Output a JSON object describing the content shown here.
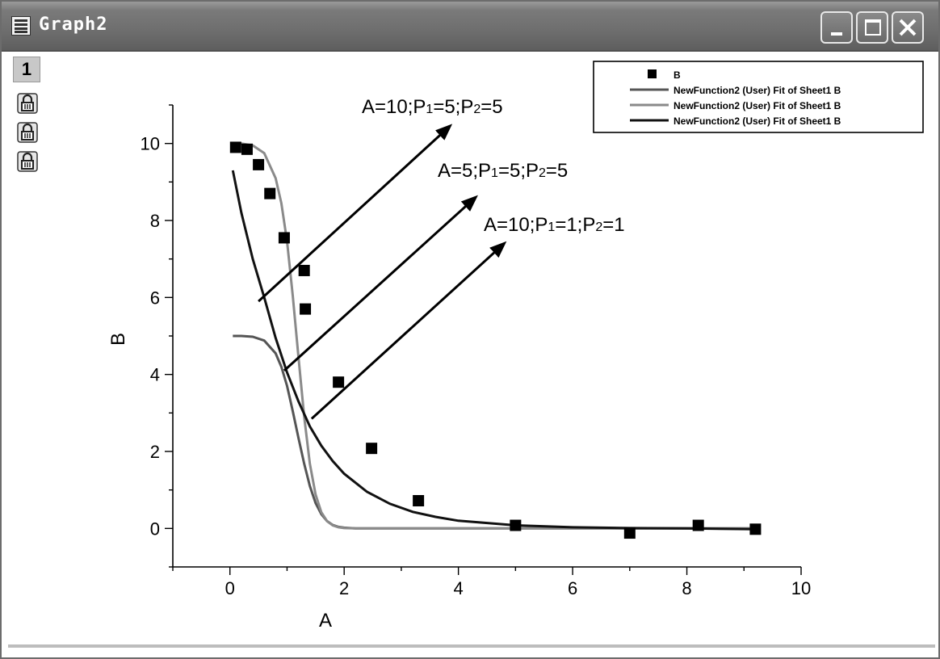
{
  "window": {
    "title": "Graph2",
    "layer_label": "1",
    "controls": [
      "minimize-icon",
      "maximize-icon",
      "close-icon"
    ],
    "side_icons": [
      "lock-icon",
      "lock-icon",
      "lock-icon"
    ]
  },
  "chart_data": {
    "type": "scatter",
    "xlabel": "A",
    "ylabel": "B",
    "xlim": [
      -1,
      10
    ],
    "ylim": [
      -1,
      11
    ],
    "xticks": [
      "0",
      "2",
      "4",
      "6",
      "8",
      "10"
    ],
    "yticks": [
      "0",
      "2",
      "4",
      "6",
      "8",
      "10"
    ],
    "grid": false,
    "legend_position": "top-right",
    "legend": [
      "B",
      "NewFunction2 (User) Fit of Sheet1 B",
      "NewFunction2 (User) Fit of Sheet1 B",
      "NewFunction2 (User) Fit of Sheet1 B"
    ],
    "series": [
      {
        "name": "B",
        "kind": "points",
        "color": "#000000",
        "x": [
          0.1,
          0.3,
          0.5,
          0.7,
          0.95,
          1.3,
          1.32,
          1.9,
          2.48,
          3.3,
          5.0,
          7.0,
          8.2,
          9.2
        ],
        "y": [
          9.9,
          9.85,
          9.45,
          8.7,
          7.55,
          6.7,
          5.7,
          3.8,
          2.08,
          0.72,
          0.08,
          -0.12,
          0.08,
          -0.02
        ]
      },
      {
        "name": "NewFunction2 (User) Fit of Sheet1 B",
        "kind": "line",
        "color": "#555555",
        "x": [
          0.05,
          0.2,
          0.4,
          0.6,
          0.8,
          0.9,
          1.0,
          1.1,
          1.2,
          1.3,
          1.4,
          1.5,
          1.6,
          1.7,
          1.8,
          1.9,
          2.0,
          2.2,
          2.6,
          3.0,
          4.0,
          6.0,
          8.0,
          9.2
        ],
        "y": [
          5.0,
          5.0,
          4.98,
          4.88,
          4.55,
          4.2,
          3.7,
          3.05,
          2.35,
          1.68,
          1.1,
          0.66,
          0.37,
          0.19,
          0.09,
          0.04,
          0.02,
          0.0,
          0.0,
          0.0,
          0.0,
          0.0,
          0.0,
          0.0
        ]
      },
      {
        "name": "NewFunction2 (User) Fit of Sheet1 B",
        "kind": "line",
        "color": "#8a8a8a",
        "x": [
          0.05,
          0.2,
          0.4,
          0.6,
          0.8,
          0.9,
          1.0,
          1.1,
          1.2,
          1.3,
          1.4,
          1.5,
          1.6,
          1.7,
          1.8,
          1.9,
          2.0,
          2.2,
          2.6,
          3.0,
          4.0,
          6.0,
          8.0,
          9.2
        ],
        "y": [
          10.0,
          10.0,
          9.95,
          9.75,
          9.1,
          8.45,
          7.45,
          6.05,
          4.45,
          2.9,
          1.68,
          0.88,
          0.42,
          0.19,
          0.08,
          0.03,
          0.01,
          0.0,
          0.0,
          0.0,
          0.0,
          0.0,
          0.0,
          0.0
        ]
      },
      {
        "name": "NewFunction2 (User) Fit of Sheet1 B",
        "kind": "line",
        "color": "#111111",
        "x": [
          0.05,
          0.2,
          0.4,
          0.6,
          0.8,
          1.0,
          1.2,
          1.4,
          1.6,
          1.8,
          2.0,
          2.4,
          2.8,
          3.2,
          3.6,
          4.0,
          5.0,
          6.0,
          7.0,
          8.0,
          9.2
        ],
        "y": [
          9.3,
          8.2,
          7.0,
          6.0,
          4.95,
          4.05,
          3.3,
          2.65,
          2.15,
          1.75,
          1.42,
          0.95,
          0.64,
          0.43,
          0.3,
          0.2,
          0.08,
          0.03,
          0.01,
          0.0,
          -0.02
        ]
      }
    ],
    "annotations": [
      {
        "label": "A=10;P",
        "sub1": "1",
        "mid": "=5;P",
        "sub2": "2",
        "tail": "=5",
        "arrow_from": [
          0.5,
          5.9
        ],
        "arrow_to": [
          3.85,
          10.45
        ]
      },
      {
        "label": "A=5;P",
        "sub1": "1",
        "mid": "=5;P",
        "sub2": "2",
        "tail": "=5",
        "arrow_from": [
          0.95,
          4.1
        ],
        "arrow_to": [
          4.3,
          8.6
        ]
      },
      {
        "label": "A=10;P",
        "sub1": "1",
        "mid": "=1;P",
        "sub2": "2",
        "tail": "=1",
        "arrow_from": [
          1.43,
          2.85
        ],
        "arrow_to": [
          4.8,
          7.4
        ]
      }
    ]
  }
}
